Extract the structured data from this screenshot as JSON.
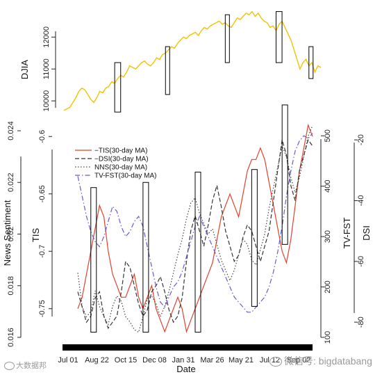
{
  "chart_data": [
    {
      "type": "line",
      "panel": "top",
      "ylabel": "DJIA",
      "yticks": [
        10000,
        11000,
        12000
      ],
      "ylim": [
        9500,
        12900
      ],
      "line_color": "#f2c200",
      "series": [
        {
          "values": [
            9700,
            9750,
            9800,
            9950,
            10100,
            10300,
            10400,
            10350,
            10200,
            10050,
            9950,
            10100,
            10300,
            10250,
            10400,
            10450,
            10600,
            10550,
            10700,
            10800,
            10750,
            10900,
            11100,
            11050,
            11000,
            11100,
            11200,
            11250,
            11150,
            11100,
            11200,
            11350,
            11300,
            11450,
            11500,
            11600,
            11700,
            11650,
            11800,
            11900,
            12000,
            11950,
            12050,
            12100,
            12150,
            12050,
            12200,
            12300,
            12250,
            12350,
            12400,
            12450,
            12500,
            12400,
            12450,
            12350,
            12300,
            12450,
            12600,
            12550,
            12650,
            12750,
            12700,
            12800,
            12650,
            12750,
            12600,
            12500,
            12450,
            12300,
            12350,
            12200,
            12400,
            12500,
            12300,
            12100,
            11900,
            11600,
            11300,
            11000,
            11200,
            11300,
            11100,
            11200,
            10900,
            11100,
            11050
          ]
        }
      ],
      "event_windows": [
        {
          "start_index": 17,
          "end_index": 19,
          "ymin": 9650,
          "ymax": 11200
        },
        {
          "start_index": 34,
          "end_index": 35,
          "ymin": 10200,
          "ymax": 11700
        },
        {
          "start_index": 54,
          "end_index": 55,
          "ymin": 11200,
          "ymax": 12700
        },
        {
          "start_index": 71,
          "end_index": 73,
          "ymin": 11200,
          "ymax": 12800
        },
        {
          "start_index": 82,
          "end_index": 83,
          "ymin": 10700,
          "ymax": 11700
        }
      ]
    },
    {
      "type": "line",
      "panel": "bottom",
      "xlabel": "Date",
      "x_tick_labels": [
        "Jul 01",
        "Aug 22",
        "Oct 15",
        "Dec 08",
        "Jan 31",
        "Mar 26",
        "May 21",
        "Jul 12",
        "Sep 02"
      ],
      "left_axes": {
        "news_sentiment": {
          "label": "News Sentiment",
          "ticks": [
            0.016,
            0.018,
            0.02,
            0.022,
            0.024
          ],
          "lim": [
            0.016,
            0.024
          ]
        },
        "tis": {
          "label": "TIS",
          "ticks": [
            -0.75,
            -0.7,
            -0.65,
            -0.6
          ],
          "lim": [
            -0.775,
            -0.595
          ]
        }
      },
      "right_axes": {
        "tv_fst": {
          "label": "TV-FST",
          "ticks": [
            100,
            200,
            300,
            400,
            500
          ],
          "lim": [
            100,
            510
          ]
        },
        "dsi": {
          "label": "DSI",
          "ticks": [
            -80,
            -60,
            -40,
            -20
          ],
          "lim": [
            -85,
            -17
          ]
        }
      },
      "legend": [
        {
          "label": "−TIS(30-day MA)",
          "color": "#e0402a",
          "dash": "solid"
        },
        {
          "label": "−DSI(30-day MA)",
          "color": "#333333",
          "dash": "6,3"
        },
        {
          "label": "NNS(30-day MA)",
          "color": "#444444",
          "dash": "1.5,2.5"
        },
        {
          "label": "TV-FST(30-day MA)",
          "color": "#6a5acd",
          "dash": "7,3,1.5,3"
        }
      ],
      "series": [
        {
          "name": "−TIS(30-day MA)",
          "axis": "tis",
          "color": "#e0402a",
          "values": [
            -0.75,
            -0.74,
            -0.72,
            -0.7,
            -0.68,
            -0.66,
            -0.67,
            -0.7,
            -0.72,
            -0.73,
            -0.74,
            -0.74,
            -0.73,
            -0.72,
            -0.74,
            -0.75,
            -0.74,
            -0.73,
            -0.75,
            -0.76,
            -0.77,
            -0.76,
            -0.75,
            -0.74,
            -0.75,
            -0.77,
            -0.76,
            -0.75,
            -0.74,
            -0.73,
            -0.72,
            -0.71,
            -0.69,
            -0.67,
            -0.66,
            -0.65,
            -0.66,
            -0.67,
            -0.65,
            -0.63,
            -0.62,
            -0.62,
            -0.61,
            -0.62,
            -0.64,
            -0.66,
            -0.68,
            -0.7,
            -0.71,
            -0.69,
            -0.66,
            -0.63,
            -0.61,
            -0.59,
            -0.6
          ]
        },
        {
          "name": "−DSI(30-day MA)",
          "axis": "dsi",
          "color": "#333333",
          "values": [
            -70,
            -75,
            -80,
            -78,
            -72,
            -70,
            -78,
            -82,
            -80,
            -78,
            -70,
            -60,
            -62,
            -68,
            -74,
            -78,
            -76,
            -70,
            -68,
            -65,
            -70,
            -76,
            -80,
            -78,
            -72,
            -60,
            -50,
            -45,
            -50,
            -55,
            -48,
            -40,
            -35,
            -42,
            -50,
            -55,
            -60,
            -58,
            -52,
            -48,
            -50,
            -55,
            -60,
            -55,
            -50,
            -40,
            -30,
            -20,
            -25,
            -35,
            -40,
            -30,
            -25,
            -20,
            -22
          ]
        },
        {
          "name": "NNS(30-day MA)",
          "axis": "news_sentiment",
          "color": "#444444",
          "values": [
            0.0185,
            0.0172,
            0.0168,
            0.017,
            0.0178,
            0.0172,
            0.0168,
            0.0165,
            0.0172,
            0.0176,
            0.0174,
            0.0168,
            0.0166,
            0.0163,
            0.0162,
            0.0168,
            0.0175,
            0.0176,
            0.0173,
            0.0168,
            0.0172,
            0.0178,
            0.0185,
            0.0192,
            0.0198,
            0.0206,
            0.0212,
            0.0214,
            0.0208,
            0.0204,
            0.02,
            0.0202,
            0.0196,
            0.019,
            0.0186,
            0.0182,
            0.0186,
            0.0192,
            0.0198,
            0.0196,
            0.019,
            0.0188,
            0.0194,
            0.02,
            0.021,
            0.0218,
            0.0226,
            0.0234,
            0.023,
            0.0222,
            0.0216,
            0.0222,
            0.023,
            0.0238,
            0.0242
          ]
        },
        {
          "name": "TV-FST(30-day MA)",
          "axis": "tv_fst",
          "color": "#6a5acd",
          "values": [
            420,
            380,
            340,
            310,
            290,
            280,
            300,
            330,
            360,
            350,
            320,
            300,
            310,
            330,
            340,
            320,
            280,
            240,
            200,
            170,
            160,
            180,
            200,
            210,
            230,
            260,
            290,
            320,
            340,
            320,
            300,
            280,
            260,
            240,
            220,
            200,
            180,
            170,
            160,
            150,
            150,
            160,
            170,
            180,
            200,
            230,
            270,
            320,
            380,
            430,
            470,
            490,
            500,
            495,
            505
          ]
        }
      ],
      "event_windows": [
        {
          "start_index": 3,
          "end_index": 4,
          "ylo": 0.0162,
          "yhi": 0.0218
        },
        {
          "start_index": 15,
          "end_index": 16,
          "ylo": 0.0162,
          "yhi": 0.022
        },
        {
          "start_index": 27,
          "end_index": 28,
          "ylo": 0.0162,
          "yhi": 0.0224
        },
        {
          "start_index": 40,
          "end_index": 41,
          "ylo": 0.0172,
          "yhi": 0.0225
        },
        {
          "start_index": 47,
          "end_index": 48,
          "ylo": 0.0196,
          "yhi": 0.025
        }
      ]
    }
  ],
  "watermarks": {
    "bottom_left": "大数据邦",
    "bottom_right": "微信号: bigdatabang"
  }
}
